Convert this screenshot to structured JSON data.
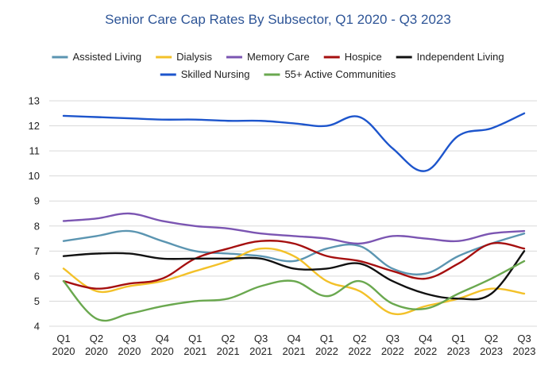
{
  "chart_data": {
    "type": "line",
    "title": "Senior Care Cap Rates By Subsector, Q1 2020 - Q3 2023",
    "xlabel": "",
    "ylabel": "",
    "ylim": [
      4,
      13
    ],
    "yticks": [
      "4",
      "5",
      "6",
      "7",
      "8",
      "9",
      "10",
      "11",
      "12",
      "13"
    ],
    "grid": true,
    "legend_position": "top",
    "categories": [
      {
        "q": "Q1",
        "y": "2020"
      },
      {
        "q": "Q2",
        "y": "2020"
      },
      {
        "q": "Q3",
        "y": "2020"
      },
      {
        "q": "Q4",
        "y": "2020"
      },
      {
        "q": "Q1",
        "y": "2021"
      },
      {
        "q": "Q2",
        "y": "2021"
      },
      {
        "q": "Q3",
        "y": "2021"
      },
      {
        "q": "Q4",
        "y": "2021"
      },
      {
        "q": "Q1",
        "y": "2022"
      },
      {
        "q": "Q2",
        "y": "2022"
      },
      {
        "q": "Q3",
        "y": "2022"
      },
      {
        "q": "Q4",
        "y": "2022"
      },
      {
        "q": "Q1",
        "y": "2023"
      },
      {
        "q": "Q2",
        "y": "2023"
      },
      {
        "q": "Q3",
        "y": "2023"
      }
    ],
    "series": [
      {
        "name": "Assisted Living",
        "color": "#5b95b1",
        "values": [
          7.4,
          7.6,
          7.8,
          7.4,
          7.0,
          6.9,
          6.8,
          6.6,
          7.1,
          7.2,
          6.3,
          6.1,
          6.8,
          7.3,
          7.7
        ]
      },
      {
        "name": "Dialysis",
        "color": "#f3c129",
        "values": [
          6.3,
          5.4,
          5.6,
          5.8,
          6.2,
          6.6,
          7.1,
          6.8,
          5.8,
          5.4,
          4.5,
          4.8,
          5.1,
          5.5,
          5.3
        ]
      },
      {
        "name": "Memory Care",
        "color": "#7b55b2",
        "values": [
          8.2,
          8.3,
          8.5,
          8.2,
          8.0,
          7.9,
          7.7,
          7.6,
          7.5,
          7.3,
          7.6,
          7.5,
          7.4,
          7.7,
          7.8
        ]
      },
      {
        "name": "Hospice",
        "color": "#a50f0f",
        "values": [
          5.8,
          5.5,
          5.7,
          5.9,
          6.7,
          7.1,
          7.4,
          7.3,
          6.8,
          6.6,
          6.2,
          5.9,
          6.5,
          7.3,
          7.1
        ]
      },
      {
        "name": "Independent Living",
        "color": "#111111",
        "values": [
          6.8,
          6.9,
          6.9,
          6.7,
          6.7,
          6.7,
          6.7,
          6.3,
          6.3,
          6.5,
          5.8,
          5.3,
          5.1,
          5.3,
          7.0
        ]
      },
      {
        "name": "Skilled Nursing",
        "color": "#1d55cc",
        "values": [
          12.4,
          12.35,
          12.3,
          12.25,
          12.25,
          12.2,
          12.2,
          12.1,
          12.0,
          12.35,
          11.1,
          10.2,
          11.6,
          11.9,
          12.5
        ]
      },
      {
        "name": "55+ Active Communities",
        "color": "#6aa84f",
        "values": [
          5.8,
          4.3,
          4.5,
          4.8,
          5.0,
          5.1,
          5.6,
          5.8,
          5.2,
          5.8,
          4.9,
          4.7,
          5.3,
          5.9,
          6.6
        ]
      }
    ]
  }
}
